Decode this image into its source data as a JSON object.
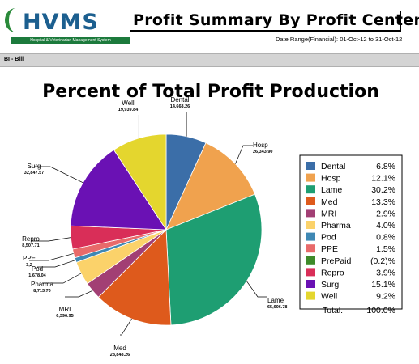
{
  "header": {
    "logo_text": "HVMS",
    "logo_tagline": "Hospital & Veterinarian Management System",
    "title": "Profit Summary By Profit Center",
    "date_range": "Date Range(Financial): 01-Oct-12 to 31-Oct-12"
  },
  "section": {
    "label": "BI - Bill"
  },
  "colors": {
    "logo": "#1c5f8f",
    "section_bar": "#d4d4d4"
  },
  "chart_data": {
    "type": "pie",
    "title": "Percent of Total Profit Production",
    "slices": [
      {
        "name": "Dental",
        "value": "14,668.26",
        "percent": "6.8%",
        "pct": 6.8,
        "color": "#3b6ea8"
      },
      {
        "name": "Hosp",
        "value": "26,343.90",
        "percent": "12.1%",
        "pct": 12.1,
        "color": "#f0a24e"
      },
      {
        "name": "Lame",
        "value": "65,606.78",
        "percent": "30.2%",
        "pct": 30.2,
        "color": "#1e9e72"
      },
      {
        "name": "Med",
        "value": "28,848.26",
        "percent": "13.3%",
        "pct": 13.3,
        "color": "#de5a1c"
      },
      {
        "name": "MRI",
        "value": "6,396.95",
        "percent": "2.9%",
        "pct": 2.9,
        "color": "#a23f74"
      },
      {
        "name": "Pharma",
        "value": "8,713.70",
        "percent": "4.0%",
        "pct": 4.0,
        "color": "#fbd26a"
      },
      {
        "name": "Pod",
        "value": "1,678.04",
        "percent": "0.8%",
        "pct": 0.8,
        "color": "#3f88b4"
      },
      {
        "name": "PPE",
        "value": "3,2",
        "percent": "1.5%",
        "pct": 1.5,
        "color": "#e86a6a"
      },
      {
        "name": "PrePaid",
        "value": "",
        "percent": "(0.2)%",
        "pct": 0,
        "color": "#3e8a2a"
      },
      {
        "name": "Repro",
        "value": "8,507.71",
        "percent": "3.9%",
        "pct": 3.9,
        "color": "#d92e58"
      },
      {
        "name": "Surg",
        "value": "32,847.57",
        "percent": "15.1%",
        "pct": 15.1,
        "color": "#6a11b4"
      },
      {
        "name": "Well",
        "value": "19,939.84",
        "percent": "9.2%",
        "pct": 9.2,
        "color": "#e4d62e"
      }
    ],
    "total_label": "Total:",
    "total_percent": "100.0%"
  }
}
